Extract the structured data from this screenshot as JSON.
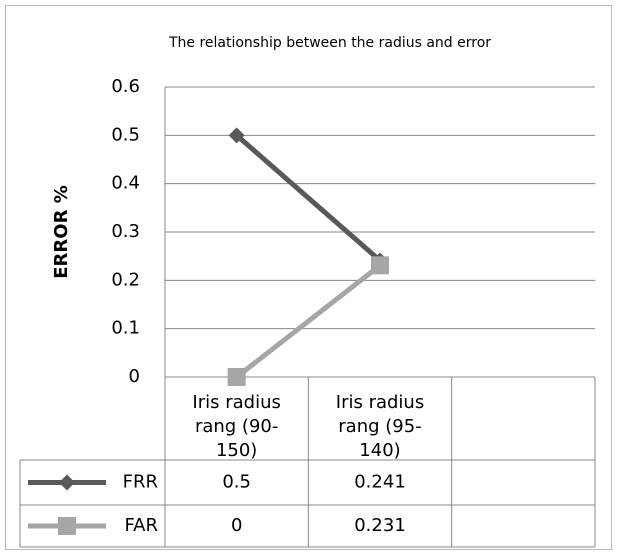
{
  "chart_data": {
    "type": "line",
    "title": "The relationship between the radius and error",
    "y_label": "ERROR %",
    "categories": [
      "Iris radius rang (90-150)",
      "Iris radius rang (95-140)",
      null
    ],
    "series": [
      {
        "name": "FRR",
        "color": "#595959",
        "marker": "diamond",
        "values": [
          0.5,
          0.241,
          null
        ]
      },
      {
        "name": "FAR",
        "color": "#a6a6a6",
        "marker": "square",
        "values": [
          0,
          0.231,
          null
        ]
      }
    ],
    "ylim": [
      0,
      0.6
    ],
    "yticks": [
      0,
      0.1,
      0.2,
      0.3,
      0.4,
      0.5,
      0.6
    ],
    "grid": true,
    "data_table": true
  }
}
